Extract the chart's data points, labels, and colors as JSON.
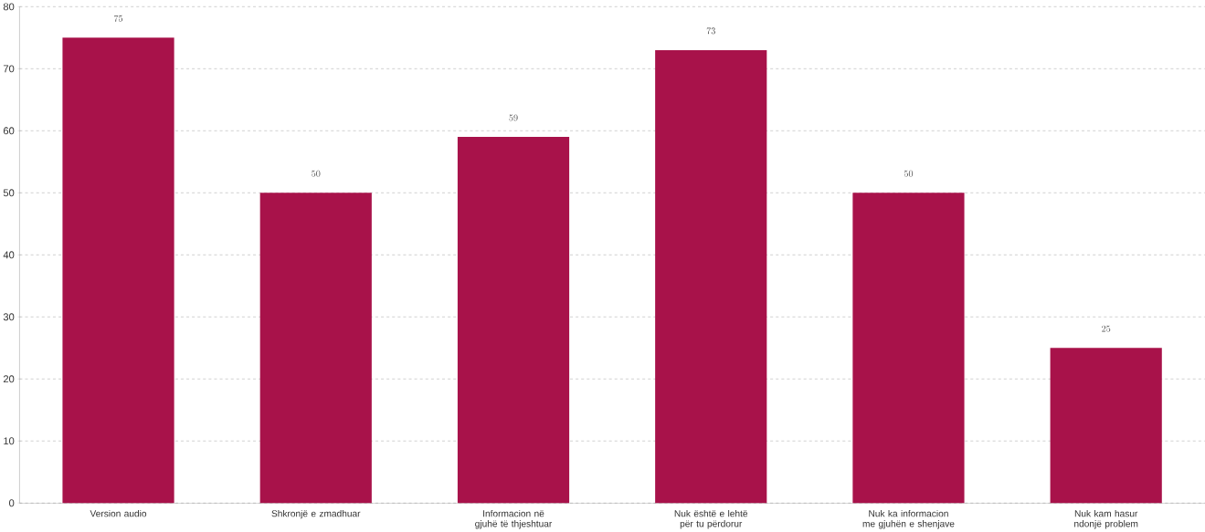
{
  "chart_data": {
    "type": "bar",
    "categories": [
      "Version audio",
      "Shkronjë e zmadhuar",
      "Informacion në gjuhë të thjeshtuar",
      "Nuk është e lehtë për tu përdorur",
      "Nuk ka informacion me gjuhën e shenjave",
      "Nuk kam hasur ndonjë problem"
    ],
    "values": [
      75,
      50,
      59,
      73,
      50,
      25
    ],
    "color": "#a8124a",
    "ylim": [
      0,
      80
    ],
    "yticks": [
      0,
      10,
      20,
      30,
      40,
      50,
      60,
      70,
      80
    ],
    "grid": "y",
    "data_labels": true
  }
}
